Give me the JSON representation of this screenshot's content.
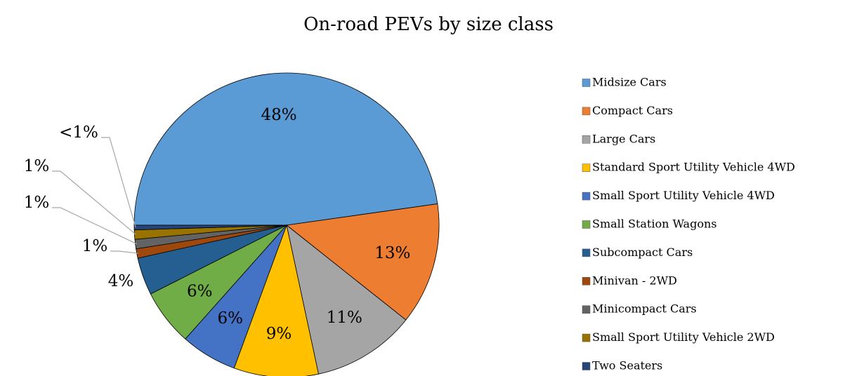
{
  "chart_data": {
    "type": "pie",
    "title": "On-road PEVs by size class",
    "categories": [
      "Midsize Cars",
      "Compact Cars",
      "Large Cars",
      "Standard Sport Utility Vehicle 4WD",
      "Small Sport Utility Vehicle 4WD",
      "Small Station Wagons",
      "Subcompact Cars",
      "Minivan - 2WD",
      "Minicompact Cars",
      "Small Sport Utility Vehicle 2WD",
      "Two Seaters"
    ],
    "values": [
      48,
      13,
      11,
      9,
      6,
      6,
      4,
      1,
      1,
      1,
      0.5
    ],
    "value_labels": [
      "48%",
      "13%",
      "11%",
      "9%",
      "6%",
      "6%",
      "4%",
      "1%",
      "1%",
      "1%",
      "<1%"
    ],
    "colors": [
      "#5b9bd5",
      "#ed7d31",
      "#a5a5a5",
      "#ffc000",
      "#4472c4",
      "#70ad47",
      "#255e91",
      "#9e480e",
      "#636363",
      "#997300",
      "#264478"
    ],
    "legend": "right"
  }
}
